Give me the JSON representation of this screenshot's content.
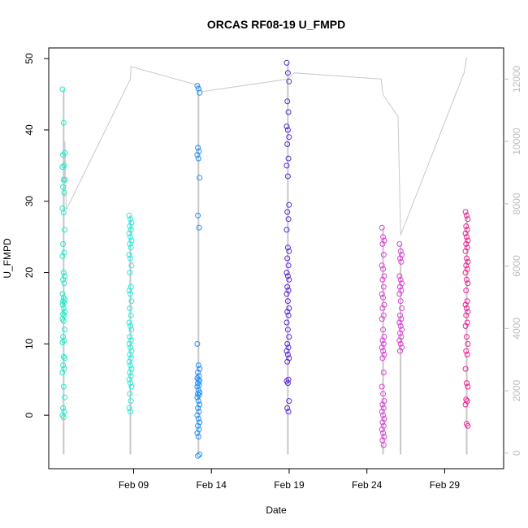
{
  "chart_data": {
    "type": "scatter",
    "title": "ORCAS RF08-19 U_FMPD",
    "xlabel": "Date",
    "ylabel": "U_FMPD",
    "ylim": [
      -7.5,
      51.5
    ],
    "y_ticks": [
      0,
      10,
      20,
      30,
      40,
      50
    ],
    "x_ticks": [
      {
        "date": "2016-02-09",
        "label": "Feb 09"
      },
      {
        "date": "2016-02-14",
        "label": "Feb 14"
      },
      {
        "date": "2016-02-19",
        "label": "Feb 19"
      },
      {
        "date": "2016-02-24",
        "label": "Feb 24"
      },
      {
        "date": "2016-02-29",
        "label": "Feb 29"
      }
    ],
    "xlim": [
      "2016-02-03T13:00",
      "2016-03-03T19:00"
    ],
    "y2_ticks": [
      0,
      2000,
      4000,
      6000,
      8000,
      10000,
      12000
    ],
    "y2lim": [
      -500,
      13000
    ],
    "grid": false,
    "series": [
      {
        "date": "2016-02-04T12:00",
        "color": "#1EEBC8",
        "values": [
          45.7,
          41.0,
          36.8,
          36.5,
          35.0,
          34.8,
          33.0,
          33.0,
          32.0,
          31.2,
          29.0,
          28.4,
          26.0,
          24.0,
          22.8,
          22.3,
          20.0,
          19.5,
          19.0,
          18.5,
          17.0,
          16.5,
          16.2,
          16.0,
          15.8,
          15.5,
          15.0,
          14.5,
          14.2,
          14.0,
          13.5,
          13.2,
          12.0,
          11.0,
          10.5,
          10.2,
          8.2,
          8.0,
          7.0,
          6.5,
          6.0,
          4.0,
          2.5,
          1.0,
          0.5,
          0.0,
          -0.3
        ]
      },
      {
        "date": "2016-02-08T19:00",
        "color": "#21F0E0",
        "values": [
          28.0,
          27.5,
          27.0,
          26.5,
          26.0,
          25.5,
          25.0,
          24.5,
          24.0,
          23.5,
          22.5,
          22.0,
          21.0,
          20.0,
          18.0,
          17.5,
          17.0,
          16.0,
          15.0,
          14.0,
          13.0,
          12.5,
          12.0,
          11.0,
          10.5,
          10.0,
          9.5,
          9.0,
          8.5,
          8.0,
          7.5,
          7.0,
          6.5,
          6.0,
          5.5,
          5.0,
          4.5,
          4.0,
          3.0,
          2.0,
          1.0,
          0.5
        ]
      },
      {
        "date": "2016-02-13T04:00",
        "color": "#1E90FF",
        "values": [
          46.2,
          45.8,
          45.2,
          37.5,
          37.0,
          36.5,
          36.0,
          33.3,
          28.0,
          26.3,
          10.0,
          7.0,
          6.5,
          6.0,
          5.5,
          5.2,
          5.0,
          4.8,
          4.5,
          4.2,
          4.0,
          3.5,
          3.2,
          3.0,
          2.8,
          2.5,
          2.0,
          1.5,
          1.0,
          0.5,
          0.0,
          -0.5,
          -1.0,
          -1.5,
          -2.0,
          -2.5,
          -3.0,
          -5.5,
          -5.7
        ]
      },
      {
        "date": "2016-02-18T22:00",
        "color": "#5A28DC",
        "values": [
          49.4,
          48.0,
          46.8,
          44.0,
          42.5,
          40.5,
          40.0,
          39.0,
          38.0,
          36.0,
          35.0,
          33.5,
          29.5,
          28.5,
          27.5,
          26.0,
          23.5,
          23.0,
          22.0,
          21.0,
          20.0,
          19.5,
          19.0,
          18.0,
          17.5,
          17.0,
          16.0,
          15.0,
          14.5,
          14.0,
          13.0,
          12.0,
          11.0,
          10.0,
          9.5,
          9.0,
          8.5,
          8.0,
          7.5,
          5.0,
          4.8,
          4.5,
          2.0,
          1.0,
          0.5
        ]
      },
      {
        "date": "2016-02-25T01:00",
        "color": "#E040D8",
        "values": [
          26.3,
          25.0,
          24.5,
          24.0,
          22.5,
          21.0,
          20.5,
          19.5,
          19.0,
          18.0,
          17.0,
          16.5,
          15.5,
          15.0,
          14.0,
          13.5,
          12.0,
          11.0,
          10.5,
          10.0,
          9.5,
          9.0,
          8.5,
          8.0,
          6.0,
          4.0,
          3.0,
          2.0,
          1.5,
          1.0,
          0.5,
          0.0,
          -0.5,
          -1.0,
          -1.5,
          -2.0,
          -2.5,
          -3.0,
          -3.5,
          -4.2
        ]
      },
      {
        "date": "2016-02-26T04:00",
        "color": "#E040D8",
        "values": [
          24.0,
          23.0,
          22.5,
          22.0,
          21.5,
          19.5,
          19.0,
          18.5,
          18.0,
          17.5,
          17.0,
          16.0,
          15.0,
          14.0,
          13.5,
          13.0,
          12.5,
          12.0,
          11.5,
          11.0,
          10.5,
          10.0,
          9.5,
          9.0
        ]
      },
      {
        "date": "2016-03-01T10:00",
        "color": "#F01E96",
        "values": [
          28.5,
          28.0,
          27.5,
          26.5,
          26.0,
          25.5,
          25.0,
          24.5,
          24.0,
          23.5,
          23.0,
          22.0,
          21.5,
          21.0,
          20.5,
          20.0,
          19.0,
          18.5,
          17.5,
          16.0,
          15.5,
          15.0,
          14.5,
          14.0,
          13.0,
          12.5,
          11.0,
          10.0,
          9.0,
          8.5,
          6.5,
          4.5,
          4.0,
          2.2,
          2.0,
          1.5,
          -1.2,
          -1.5
        ]
      }
    ],
    "flight_path": [
      {
        "date": "2016-02-04T12:00",
        "y2": 6500
      },
      {
        "date": "2016-02-04T14:00",
        "y2": 10000
      },
      {
        "date": "2016-02-04T16:00",
        "y2": 7800
      },
      {
        "date": "2016-02-08T19:00",
        "y2": 12000
      },
      {
        "date": "2016-02-08T20:00",
        "y2": 12400
      },
      {
        "date": "2016-02-13T04:00",
        "y2": 11800
      },
      {
        "date": "2016-02-13T10:00",
        "y2": 11600
      },
      {
        "date": "2016-02-18T22:00",
        "y2": 12000
      },
      {
        "date": "2016-02-19T08:00",
        "y2": 12200
      },
      {
        "date": "2016-02-24T22:00",
        "y2": 12000
      },
      {
        "date": "2016-02-25T01:00",
        "y2": 11500
      },
      {
        "date": "2016-02-26T00:00",
        "y2": 10800
      },
      {
        "date": "2016-02-26T04:00",
        "y2": 7000
      },
      {
        "date": "2016-03-01T06:00",
        "y2": 12200
      },
      {
        "date": "2016-03-01T10:00",
        "y2": 12700
      }
    ],
    "flight_path_color": "#c8c8c8"
  }
}
